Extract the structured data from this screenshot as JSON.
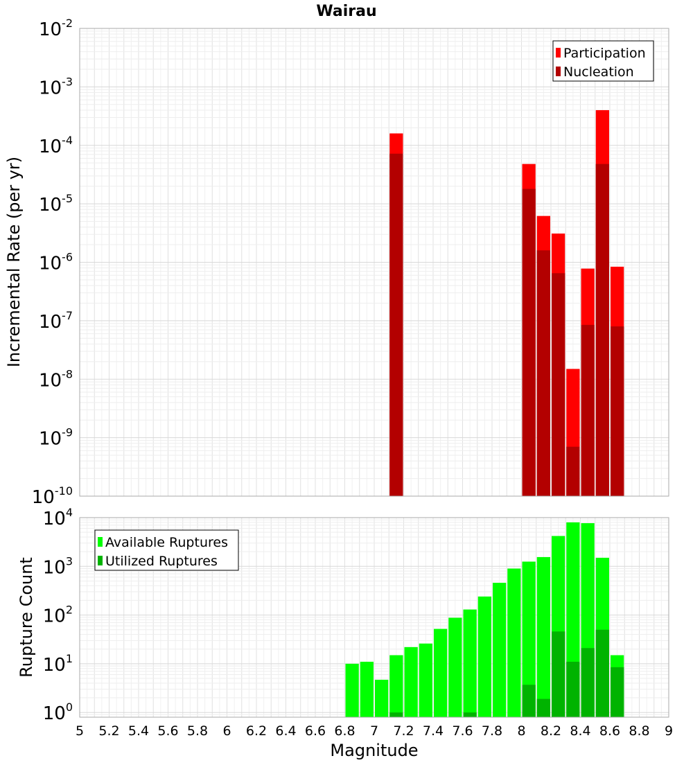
{
  "chart_data": [
    {
      "type": "bar",
      "title": "Wairau",
      "ylabel": "Incremental Rate (per yr)",
      "yscale": "log",
      "ylim": [
        1e-10,
        0.01
      ],
      "xlim": [
        5,
        9
      ],
      "y_tick_exponents": [
        -10,
        -9,
        -8,
        -7,
        -6,
        -5,
        -4,
        -3,
        -2
      ],
      "legend": {
        "placement": "top-right"
      },
      "bar_width": 0.1,
      "series": [
        {
          "name": "Participation",
          "color": "#ff0000",
          "points": [
            {
              "x": 7.15,
              "y": 0.00016
            },
            {
              "x": 8.05,
              "y": 4.8e-05
            },
            {
              "x": 8.15,
              "y": 6.2e-06
            },
            {
              "x": 8.25,
              "y": 3.1e-06
            },
            {
              "x": 8.35,
              "y": 1.5e-08
            },
            {
              "x": 8.45,
              "y": 7.8e-07
            },
            {
              "x": 8.55,
              "y": 0.0004
            },
            {
              "x": 8.65,
              "y": 8.4e-07
            }
          ]
        },
        {
          "name": "Nucleation",
          "color": "#b30000",
          "points": [
            {
              "x": 7.15,
              "y": 7.2e-05
            },
            {
              "x": 8.05,
              "y": 1.8e-05
            },
            {
              "x": 8.15,
              "y": 1.6e-06
            },
            {
              "x": 8.25,
              "y": 6.5e-07
            },
            {
              "x": 8.35,
              "y": 7e-10
            },
            {
              "x": 8.45,
              "y": 8.5e-08
            },
            {
              "x": 8.55,
              "y": 4.8e-05
            },
            {
              "x": 8.65,
              "y": 8e-08
            }
          ]
        }
      ]
    },
    {
      "type": "bar",
      "xlabel": "Magnitude",
      "ylabel": "Rupture Count",
      "yscale": "log",
      "ylim": [
        0.8,
        10000
      ],
      "xlim": [
        5,
        9
      ],
      "y_tick_exponents": [
        0,
        1,
        2,
        3,
        4
      ],
      "x_ticks": [
        "5",
        "5.2",
        "5.4",
        "5.6",
        "5.8",
        "6",
        "6.2",
        "6.4",
        "6.6",
        "6.8",
        "7",
        "7.2",
        "7.4",
        "7.6",
        "7.8",
        "8",
        "8.2",
        "8.4",
        "8.6",
        "8.8",
        "9"
      ],
      "legend": {
        "placement": "top-left"
      },
      "bar_width": 0.1,
      "series": [
        {
          "name": "Available Ruptures",
          "color": "#00ff00",
          "points": [
            {
              "x": 6.85,
              "y": 10
            },
            {
              "x": 6.95,
              "y": 11
            },
            {
              "x": 7.05,
              "y": 4.7
            },
            {
              "x": 7.15,
              "y": 15
            },
            {
              "x": 7.25,
              "y": 22
            },
            {
              "x": 7.35,
              "y": 26
            },
            {
              "x": 7.45,
              "y": 52
            },
            {
              "x": 7.55,
              "y": 88
            },
            {
              "x": 7.65,
              "y": 130
            },
            {
              "x": 7.75,
              "y": 240
            },
            {
              "x": 7.85,
              "y": 460
            },
            {
              "x": 7.95,
              "y": 900
            },
            {
              "x": 8.05,
              "y": 1250
            },
            {
              "x": 8.15,
              "y": 1550
            },
            {
              "x": 8.25,
              "y": 4200
            },
            {
              "x": 8.35,
              "y": 8000
            },
            {
              "x": 8.45,
              "y": 7700
            },
            {
              "x": 8.55,
              "y": 1500
            },
            {
              "x": 8.65,
              "y": 15
            }
          ]
        },
        {
          "name": "Utilized Ruptures",
          "color": "#00b300",
          "points": [
            {
              "x": 7.15,
              "y": 1
            },
            {
              "x": 7.65,
              "y": 1
            },
            {
              "x": 8.05,
              "y": 3.7
            },
            {
              "x": 8.15,
              "y": 1.9
            },
            {
              "x": 8.25,
              "y": 46
            },
            {
              "x": 8.35,
              "y": 11
            },
            {
              "x": 8.45,
              "y": 21
            },
            {
              "x": 8.55,
              "y": 50
            },
            {
              "x": 8.65,
              "y": 8.5
            }
          ]
        }
      ]
    }
  ]
}
